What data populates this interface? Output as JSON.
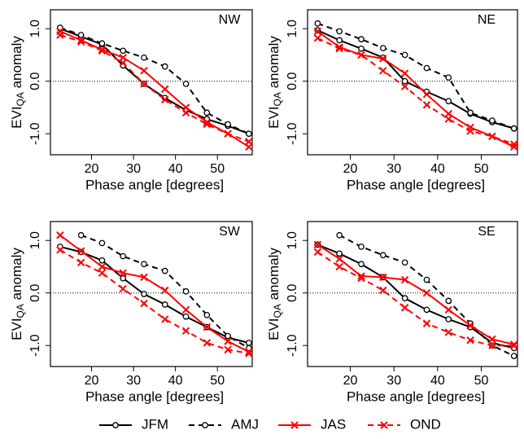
{
  "chart_data": [
    {
      "type": "line",
      "title": "NW",
      "xlabel": "Phase angle [degrees]",
      "ylabel": [
        "EVI",
        "QA",
        " anomaly"
      ],
      "x": [
        12.5,
        17.5,
        22.5,
        27.5,
        32.5,
        37.5,
        42.5,
        47.5,
        52.5,
        57.5
      ],
      "xlim": [
        10.2,
        58.3
      ],
      "xticks": [
        20,
        30,
        40,
        50
      ],
      "ylim": [
        -1.4,
        1.36
      ],
      "yticks": [
        {
          "value": -1,
          "label": "-1.0"
        },
        {
          "value": 0,
          "label": "0.0"
        },
        {
          "value": 1,
          "label": "1.0"
        }
      ],
      "hline": 0,
      "series": [
        {
          "name": "JFM",
          "color": "#000000",
          "marker": "circle",
          "dashed": false,
          "values": [
            1.0,
            0.85,
            0.7,
            0.3,
            -0.05,
            -0.32,
            -0.55,
            -0.72,
            -0.85,
            -1.0
          ]
        },
        {
          "name": "AMJ",
          "color": "#000000",
          "marker": "circle",
          "dashed": true,
          "values": [
            1.02,
            0.88,
            0.72,
            0.58,
            0.45,
            0.28,
            -0.05,
            -0.6,
            -0.82,
            -1.0
          ]
        },
        {
          "name": "JAS",
          "color": "#ff0000",
          "marker": "cross",
          "dashed": false,
          "values": [
            0.95,
            0.78,
            0.6,
            0.45,
            0.2,
            -0.15,
            -0.5,
            -0.78,
            -1.0,
            -1.25
          ]
        },
        {
          "name": "OND",
          "color": "#ff0000",
          "marker": "cross",
          "dashed": true,
          "values": [
            0.88,
            0.75,
            0.58,
            0.35,
            -0.05,
            -0.35,
            -0.6,
            -0.82,
            -1.0,
            -1.15
          ]
        }
      ]
    },
    {
      "type": "line",
      "title": "NE",
      "xlabel": "Phase angle [degrees]",
      "ylabel": [
        "EVI",
        "QA",
        " anomaly"
      ],
      "x": [
        12.5,
        17.5,
        22.5,
        27.5,
        32.5,
        37.5,
        42.5,
        47.5,
        52.5,
        57.5
      ],
      "xlim": [
        10.2,
        58.3
      ],
      "xticks": [
        20,
        30,
        40,
        50
      ],
      "ylim": [
        -1.4,
        1.36
      ],
      "yticks": [
        {
          "value": -1,
          "label": "-1.0"
        },
        {
          "value": 0,
          "label": "0.0"
        },
        {
          "value": 1,
          "label": "1.0"
        }
      ],
      "hline": 0,
      "series": [
        {
          "name": "JFM",
          "color": "#000000",
          "marker": "circle",
          "dashed": false,
          "values": [
            0.97,
            0.78,
            0.62,
            0.45,
            0.0,
            -0.2,
            -0.38,
            -0.62,
            -0.78,
            -0.9
          ]
        },
        {
          "name": "AMJ",
          "color": "#000000",
          "marker": "circle",
          "dashed": true,
          "values": [
            1.1,
            0.95,
            0.8,
            0.63,
            0.5,
            0.25,
            0.07,
            -0.6,
            -0.75,
            -0.9
          ]
        },
        {
          "name": "JAS",
          "color": "#ff0000",
          "marker": "cross",
          "dashed": false,
          "values": [
            0.95,
            0.65,
            0.5,
            0.43,
            0.15,
            -0.25,
            -0.62,
            -0.88,
            -1.05,
            -1.25
          ]
        },
        {
          "name": "OND",
          "color": "#ff0000",
          "marker": "cross",
          "dashed": true,
          "values": [
            0.82,
            0.62,
            0.5,
            0.2,
            -0.1,
            -0.45,
            -0.72,
            -0.95,
            -1.05,
            -1.2
          ]
        }
      ]
    },
    {
      "type": "line",
      "title": "SW",
      "xlabel": "Phase angle [degrees]",
      "ylabel": [
        "EVI",
        "QA",
        " anomaly"
      ],
      "x": [
        12.5,
        17.5,
        22.5,
        27.5,
        32.5,
        37.5,
        42.5,
        47.5,
        52.5,
        57.5
      ],
      "xlim": [
        10.2,
        58.3
      ],
      "xticks": [
        20,
        30,
        40,
        50
      ],
      "ylim": [
        -1.4,
        1.36
      ],
      "yticks": [
        {
          "value": -1,
          "label": "-1.0"
        },
        {
          "value": 0,
          "label": "0.0"
        },
        {
          "value": 1,
          "label": "1.0"
        }
      ],
      "hline": 0,
      "series": [
        {
          "name": "JFM",
          "color": "#000000",
          "marker": "circle",
          "dashed": false,
          "values": [
            0.88,
            0.78,
            0.62,
            0.28,
            -0.02,
            -0.22,
            -0.45,
            -0.65,
            -0.85,
            -0.95
          ]
        },
        {
          "name": "AMJ",
          "color": "#000000",
          "marker": "circle",
          "dashed": true,
          "values": [
            null,
            1.1,
            0.95,
            0.7,
            0.55,
            0.42,
            0.03,
            -0.42,
            -0.82,
            -1.05
          ]
        },
        {
          "name": "JAS",
          "color": "#ff0000",
          "marker": "cross",
          "dashed": false,
          "values": [
            1.1,
            0.8,
            0.5,
            0.38,
            0.3,
            0.05,
            -0.32,
            -0.65,
            -0.92,
            -1.12
          ]
        },
        {
          "name": "OND",
          "color": "#ff0000",
          "marker": "cross",
          "dashed": true,
          "values": [
            0.82,
            0.58,
            0.38,
            0.08,
            -0.2,
            -0.5,
            -0.72,
            -0.95,
            -1.08,
            -1.15
          ]
        }
      ]
    },
    {
      "type": "line",
      "title": "SE",
      "xlabel": "Phase angle [degrees]",
      "ylabel": [
        "EVI",
        "QA",
        " anomaly"
      ],
      "x": [
        12.5,
        17.5,
        22.5,
        27.5,
        32.5,
        37.5,
        42.5,
        47.5,
        52.5,
        57.5
      ],
      "xlim": [
        10.2,
        58.3
      ],
      "xticks": [
        20,
        30,
        40,
        50
      ],
      "ylim": [
        -1.4,
        1.36
      ],
      "yticks": [
        {
          "value": -1,
          "label": "-1.0"
        },
        {
          "value": 0,
          "label": "0.0"
        },
        {
          "value": 1,
          "label": "1.0"
        }
      ],
      "hline": 0,
      "series": [
        {
          "name": "JFM",
          "color": "#000000",
          "marker": "circle",
          "dashed": false,
          "values": [
            0.92,
            0.75,
            0.55,
            0.3,
            -0.1,
            -0.32,
            -0.5,
            -0.65,
            -0.95,
            -1.05
          ]
        },
        {
          "name": "AMJ",
          "color": "#000000",
          "marker": "circle",
          "dashed": true,
          "values": [
            null,
            1.1,
            0.88,
            0.72,
            0.58,
            0.25,
            -0.15,
            -0.58,
            -1.0,
            -1.2
          ]
        },
        {
          "name": "JAS",
          "color": "#ff0000",
          "marker": "cross",
          "dashed": false,
          "values": [
            0.92,
            0.65,
            0.32,
            0.3,
            0.25,
            0.0,
            -0.32,
            -0.62,
            -0.88,
            -0.98
          ]
        },
        {
          "name": "OND",
          "color": "#ff0000",
          "marker": "cross",
          "dashed": true,
          "values": [
            0.78,
            0.5,
            0.28,
            0.05,
            -0.28,
            -0.58,
            -0.75,
            -0.9,
            -1.0,
            -1.0
          ]
        }
      ]
    }
  ]
}
